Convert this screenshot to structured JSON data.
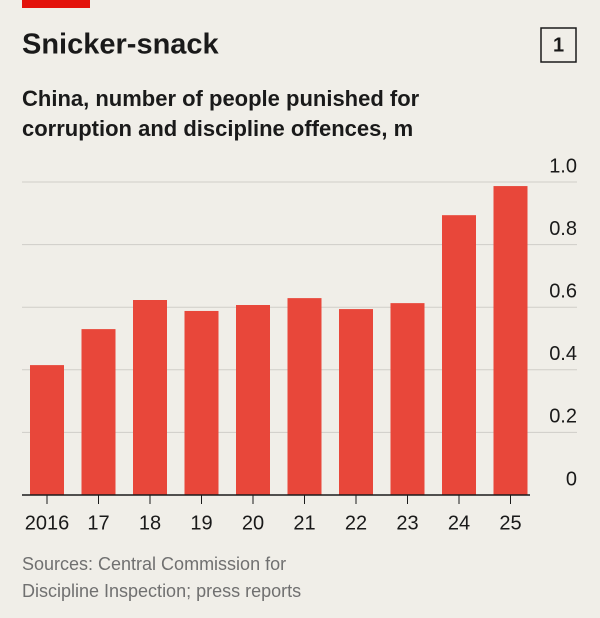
{
  "chart_data": {
    "type": "bar",
    "title": "Snicker-snack",
    "chart_number": "1",
    "subtitle_lines": [
      "China, number of people punished for",
      "corruption and discipline offences, m"
    ],
    "categories": [
      "2016",
      "17",
      "18",
      "19",
      "20",
      "21",
      "22",
      "23",
      "24",
      "25"
    ],
    "values": [
      0.415,
      0.53,
      0.623,
      0.588,
      0.607,
      0.629,
      0.594,
      0.613,
      0.894,
      0.987
    ],
    "color": "#e8473a",
    "ylim": [
      0,
      1
    ],
    "yticks": [
      0,
      0.2,
      0.4,
      0.6,
      0.8,
      {
        "value": 1,
        "label": "1.0"
      }
    ],
    "grid": true,
    "source_lines": [
      "Sources: Central Commission for",
      "Discipline Inspection; press reports"
    ]
  }
}
